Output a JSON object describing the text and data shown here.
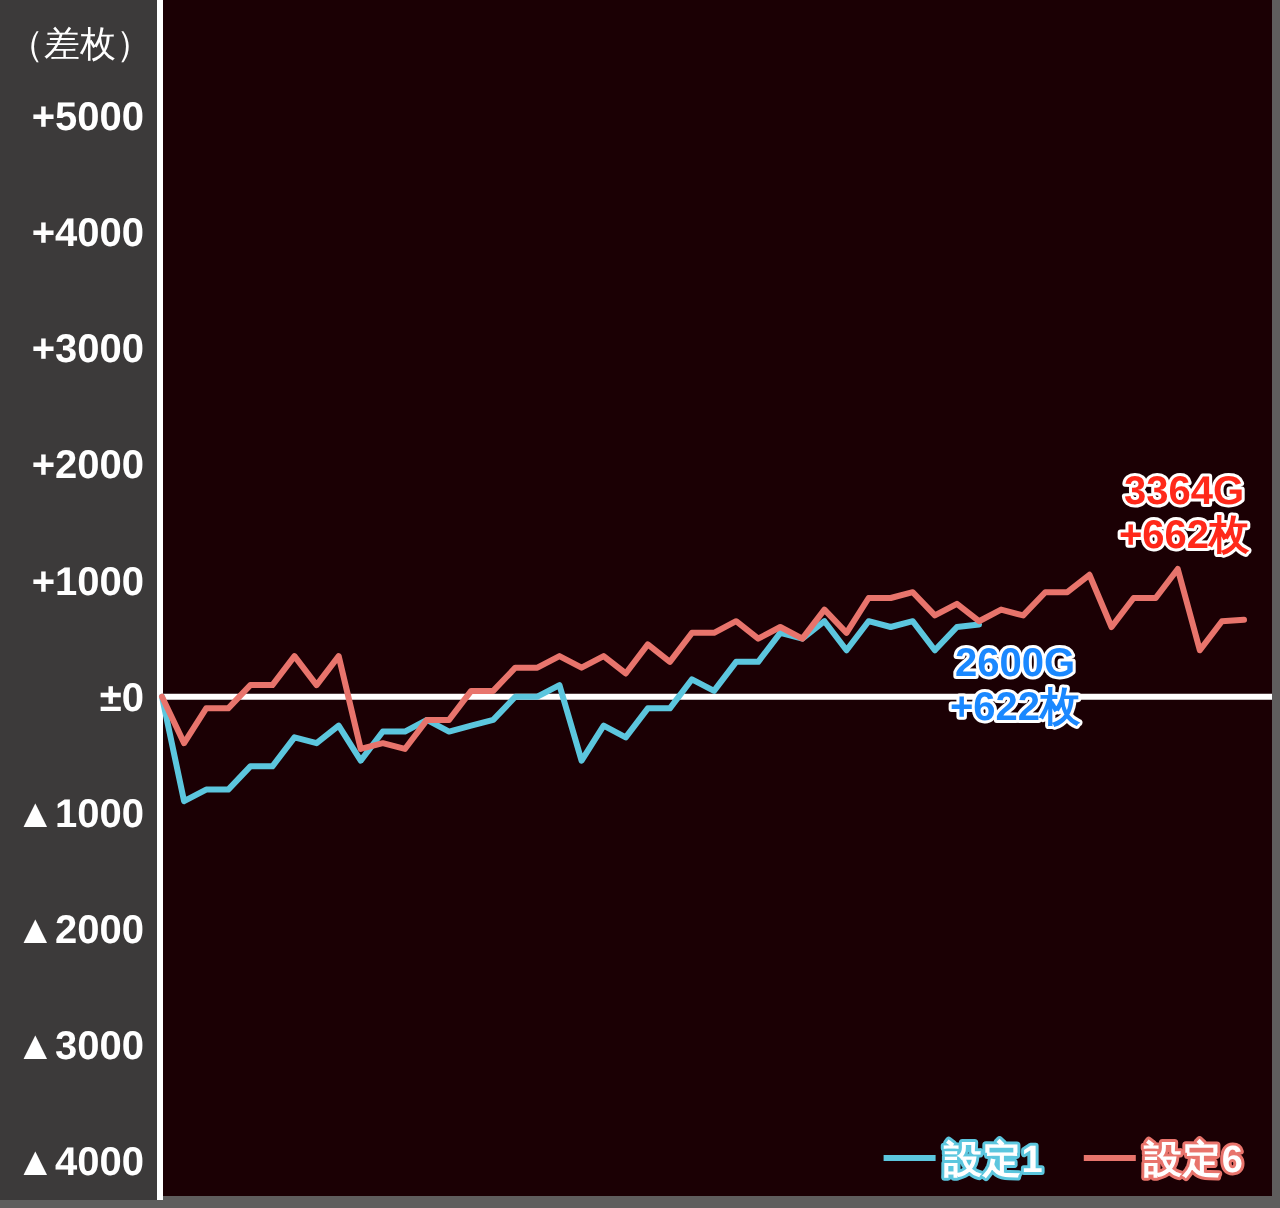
{
  "chart_data": {
    "type": "line",
    "ylabel": "（差枚）",
    "categories": [
      null,
      null,
      null,
      null,
      null,
      null,
      null,
      null,
      null,
      null,
      null,
      null,
      null,
      null,
      null,
      null,
      null,
      null,
      null,
      null,
      null,
      null,
      null,
      null,
      null,
      null,
      null,
      null,
      null,
      null,
      null,
      null,
      null,
      null,
      null,
      null,
      null,
      null,
      null,
      null,
      null,
      null,
      null,
      null,
      null,
      null,
      null,
      null,
      null,
      null
    ],
    "series": [
      {
        "name": "設定1",
        "color": "#5cc6de",
        "values": [
          0,
          -900,
          -800,
          -800,
          -600,
          -600,
          -350,
          -400,
          -250,
          -550,
          -300,
          -300,
          -200,
          -300,
          -250,
          -200,
          0,
          0,
          100,
          -550,
          -250,
          -350,
          -100,
          -100,
          150,
          50,
          300,
          300,
          550,
          500,
          650,
          400,
          650,
          600,
          650,
          400,
          600,
          622,
          null,
          null,
          null,
          null,
          null,
          null,
          null,
          null,
          null,
          null,
          null,
          null
        ]
      },
      {
        "name": "設定6",
        "color": "#e8746c",
        "values": [
          0,
          -400,
          -100,
          -100,
          100,
          100,
          350,
          100,
          350,
          -450,
          -400,
          -450,
          -200,
          -200,
          50,
          50,
          250,
          250,
          350,
          250,
          350,
          200,
          450,
          300,
          550,
          550,
          650,
          500,
          600,
          500,
          750,
          550,
          850,
          850,
          900,
          700,
          800,
          650,
          750,
          700,
          900,
          900,
          1050,
          600,
          850,
          850,
          1100,
          400,
          650,
          662
        ]
      }
    ],
    "ylim": [
      -4300,
      6000
    ],
    "yticks": [
      {
        "value": 5000,
        "label": "+5000"
      },
      {
        "value": 4000,
        "label": "+4000"
      },
      {
        "value": 3000,
        "label": "+3000"
      },
      {
        "value": 2000,
        "label": "+2000"
      },
      {
        "value": 1000,
        "label": "+1000"
      },
      {
        "value": 0,
        "label": "±0"
      },
      {
        "value": -1000,
        "label": "▲1000"
      },
      {
        "value": -2000,
        "label": "▲2000"
      },
      {
        "value": -3000,
        "label": "▲3000"
      },
      {
        "value": -4000,
        "label": "▲4000"
      }
    ],
    "ref_lines": [
      {
        "axis": "y",
        "value": 0,
        "color": "#ffffff"
      }
    ],
    "legend": "bottom right",
    "annotations": [
      "2600G",
      "+622枚",
      "3364G",
      "+662枚"
    ]
  }
}
